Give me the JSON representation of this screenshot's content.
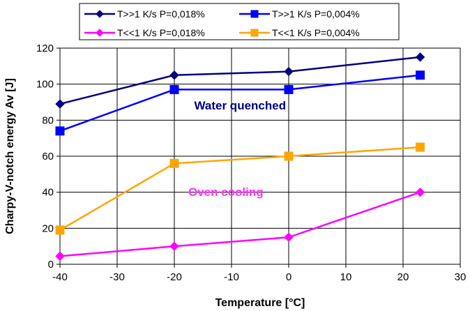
{
  "chart_data": {
    "type": "line",
    "xlabel": "Temperature [°C]",
    "ylabel": "Charpy-V-notch energy Av [J]",
    "xlim": [
      -40,
      30
    ],
    "ylim": [
      0,
      120
    ],
    "xticks": [
      -40,
      -30,
      -20,
      -10,
      0,
      10,
      20,
      30
    ],
    "yticks": [
      0,
      20,
      40,
      60,
      80,
      100,
      120
    ],
    "x_tick_labels": [
      "-40",
      "-30",
      "-20",
      "-10",
      "0",
      "10",
      "20",
      "30"
    ],
    "y_tick_labels": [
      "0",
      "20",
      "40",
      "60",
      "80",
      "100",
      "120"
    ],
    "grid": true,
    "legend_position": "top",
    "series": [
      {
        "name": "T>>1 K/s P=0,018%",
        "color": "#000080",
        "marker": "diamond",
        "points": [
          [
            -40,
            89
          ],
          [
            -20,
            105
          ],
          [
            0,
            107
          ],
          [
            23,
            115
          ]
        ]
      },
      {
        "name": "T>>1 K/s P=0,004%",
        "color": "#0000FF",
        "marker": "square",
        "points": [
          [
            -40,
            74
          ],
          [
            -20,
            97
          ],
          [
            0,
            97
          ],
          [
            23,
            105
          ]
        ]
      },
      {
        "name": "T<<1 K/s P=0,018%",
        "color": "#FF00FF",
        "marker": "diamond",
        "points": [
          [
            -40,
            4.5
          ],
          [
            -20,
            10
          ],
          [
            0,
            15
          ],
          [
            23,
            40
          ]
        ]
      },
      {
        "name": "T<<1 K/s P=0,004%",
        "color": "#FFA500",
        "marker": "square",
        "points": [
          [
            -40,
            19
          ],
          [
            -20,
            56
          ],
          [
            0,
            60
          ],
          [
            23,
            65
          ]
        ]
      }
    ],
    "annotations": [
      {
        "text": "Water quenched",
        "x": -8.5,
        "y": 86,
        "color": "#000080"
      },
      {
        "text": "Oven cooling",
        "x": -11,
        "y": 38,
        "color": "#FF33FF"
      }
    ]
  }
}
